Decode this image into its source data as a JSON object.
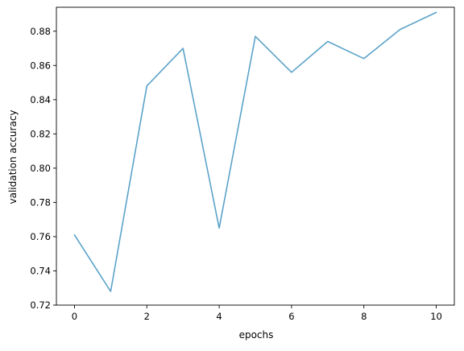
{
  "chart_data": {
    "type": "line",
    "title": "",
    "xlabel": "epochs",
    "ylabel": "validation accuracy",
    "xlim": [
      -0.5,
      10.5
    ],
    "ylim": [
      0.72,
      0.894
    ],
    "x_ticks": [
      0,
      2,
      4,
      6,
      8,
      10
    ],
    "x_tick_labels": [
      "0",
      "2",
      "4",
      "6",
      "8",
      "10"
    ],
    "y_ticks": [
      0.72,
      0.74,
      0.76,
      0.78,
      0.8,
      0.82,
      0.84,
      0.86,
      0.88
    ],
    "y_tick_labels": [
      "0.72",
      "0.74",
      "0.76",
      "0.78",
      "0.80",
      "0.82",
      "0.84",
      "0.86",
      "0.88"
    ],
    "grid": false,
    "legend": "none",
    "series": [
      {
        "color": "#5ba3c9",
        "x": [
          0,
          1,
          2,
          3,
          4,
          5,
          6,
          7,
          8,
          9,
          10
        ],
        "y": [
          0.761,
          0.728,
          0.848,
          0.87,
          0.765,
          0.877,
          0.856,
          0.874,
          0.864,
          0.881,
          0.891
        ]
      }
    ]
  }
}
